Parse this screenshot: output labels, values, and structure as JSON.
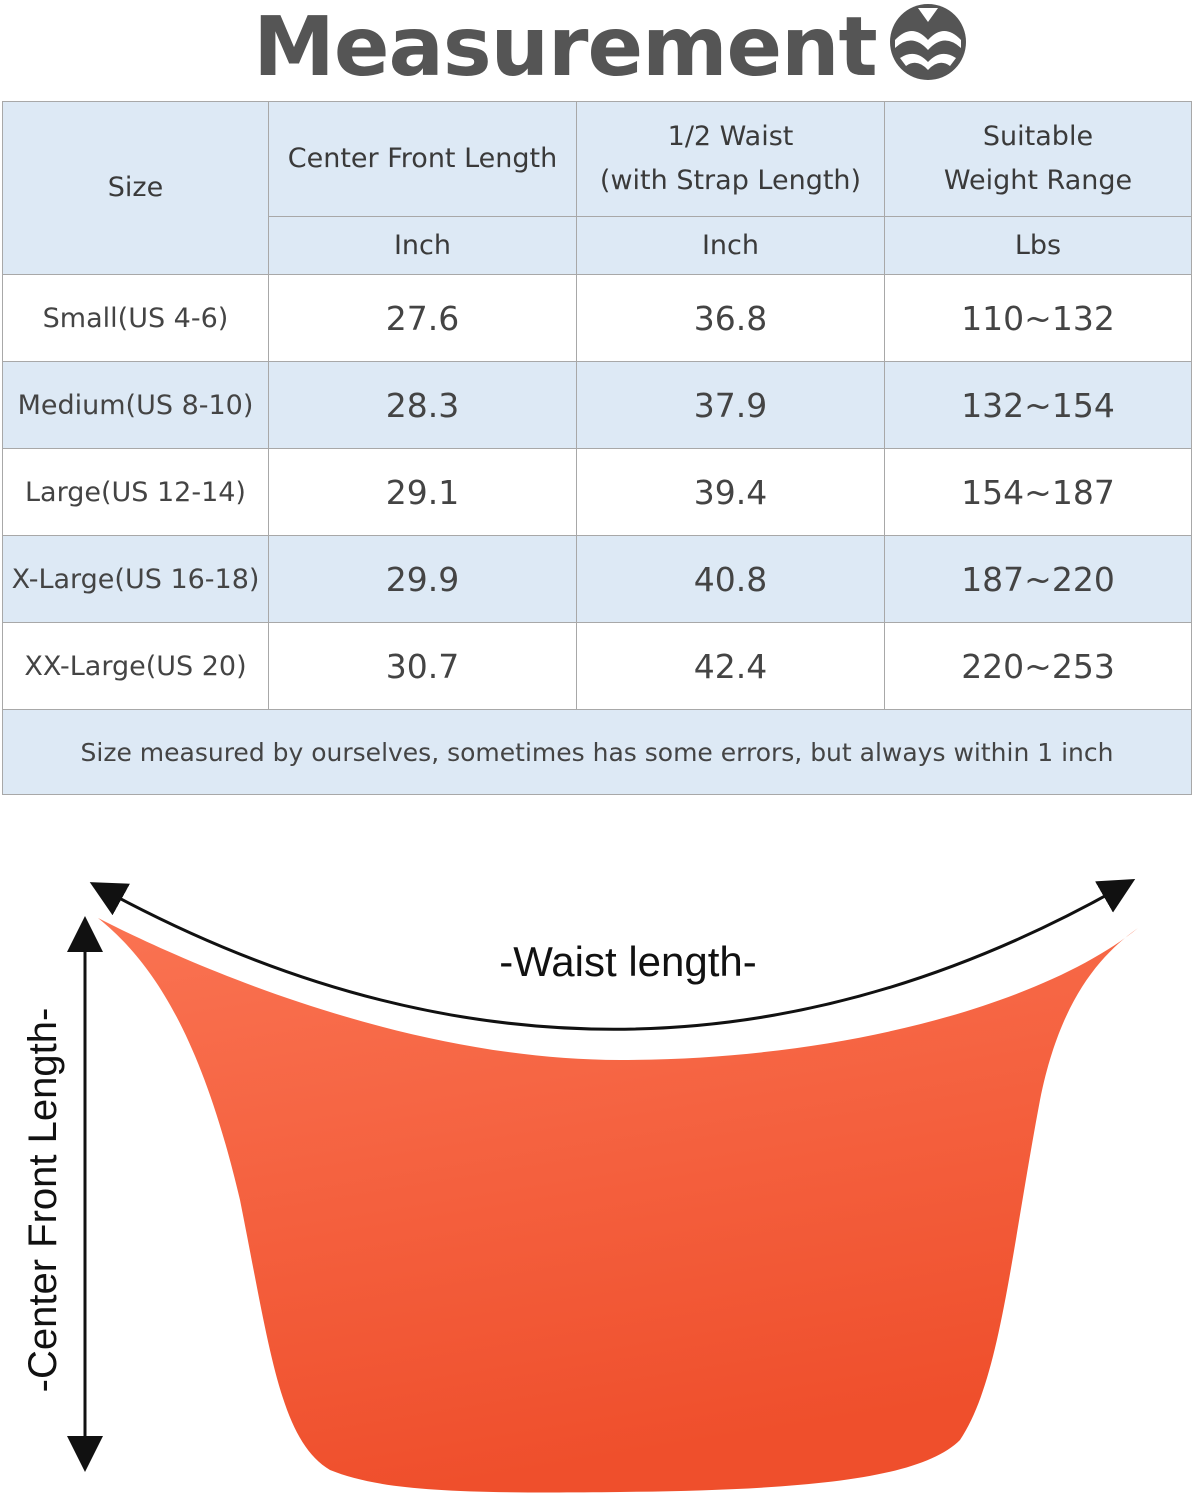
{
  "header": {
    "title": "Measurement"
  },
  "table": {
    "columns": [
      "Size",
      "Center Front Length",
      "1/2 Waist\n(with Strap Length)",
      "Suitable\nWeight Range"
    ],
    "units": [
      "Inch",
      "Inch",
      "Lbs"
    ],
    "rows": [
      [
        "Small(US 4-6)",
        "27.6",
        "36.8",
        "110~132"
      ],
      [
        "Medium(US 8-10)",
        "28.3",
        "37.9",
        "132~154"
      ],
      [
        "Large(US 12-14)",
        "29.1",
        "39.4",
        "154~187"
      ],
      [
        "X-Large(US 16-18)",
        "29.9",
        "40.8",
        "187~220"
      ],
      [
        "XX-Large(US 20)",
        "30.7",
        "42.4",
        "220~253"
      ]
    ],
    "note": "Size measured by ourselves, sometimes has some errors, but always within 1 inch"
  },
  "diagram": {
    "waist_label": "-Waist length-",
    "length_label": "-Center Front Length-"
  }
}
